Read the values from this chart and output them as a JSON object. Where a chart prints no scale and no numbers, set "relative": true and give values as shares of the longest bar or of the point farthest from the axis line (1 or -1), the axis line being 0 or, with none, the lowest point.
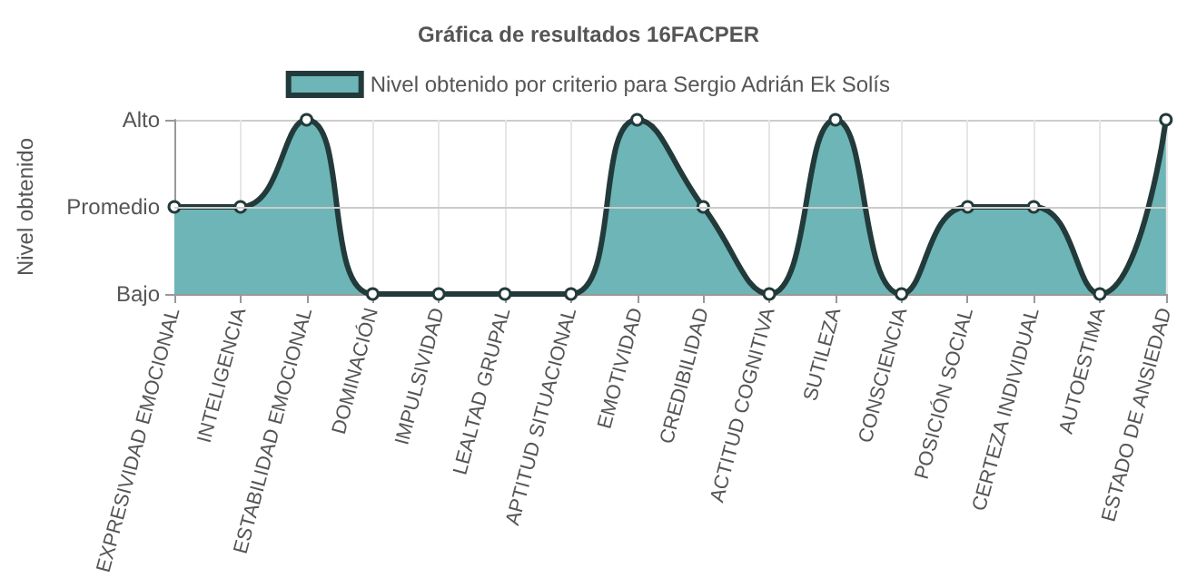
{
  "chart_data": {
    "type": "area",
    "title": "Gráfica de resultados 16FACPER",
    "ylabel": "Nivel obtenido",
    "categories": [
      "EXPRESIVIDAD EMOCIONAL",
      "INTELIGENCIA",
      "ESTABILIDAD EMOCIONAL",
      "DOMINACIÓN",
      "IMPULSIVIDAD",
      "LEALTAD GRUPAL",
      "APTITUD SITUACIONAL",
      "EMOTIVIDAD",
      "CREDIBILIDAD",
      "ACTITUD COGNITIVA",
      "SUTILEZA",
      "CONSCIENCIA",
      "POSICIÓN SOCIAL",
      "CERTEZA INDIVIDUAL",
      "AUTOESTIMA",
      "ESTADO DE ANSIEDAD"
    ],
    "relative": true,
    "annotations": [
      "Bajo",
      "Alto"
    ],
    "ref_lines": [
      {
        "axis": "y",
        "value": 0.5,
        "label": "Promedio",
        "color": "#cccccc"
      }
    ],
    "series": [
      {
        "name": "Nivel obtenido por criterio para Sergio Adrián Ek Solís",
        "color": "#6db5b6",
        "values": [
          0.5,
          0.5,
          1,
          0,
          0,
          0,
          0,
          1,
          0.5,
          0,
          1,
          0,
          0.5,
          0.5,
          0,
          1
        ]
      }
    ],
    "grid": true,
    "legend": "top",
    "marker": "circle",
    "line_style": "solid"
  }
}
